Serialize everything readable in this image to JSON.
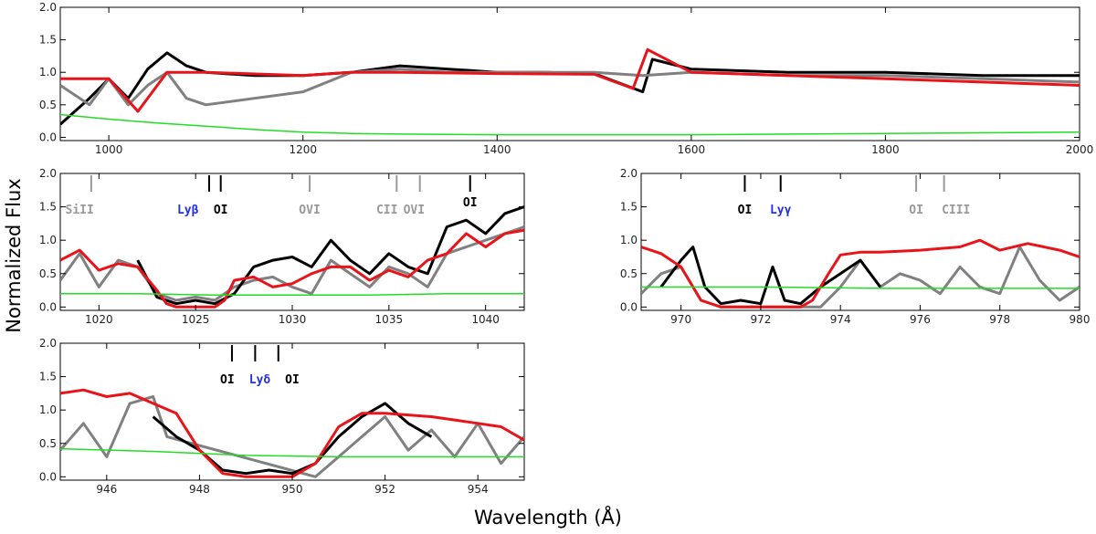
{
  "figure": {
    "xlabel": "Wavelength (Å)",
    "ylabel": "Normalized Flux"
  },
  "colors": {
    "data_black": "#000000",
    "data_gray": "#808080",
    "model_red": "#e8141a",
    "error_green": "#22dd22",
    "marker_black": "#000000",
    "marker_gray": "#999999",
    "lyman_blue": "#2233dd"
  },
  "chart_data": [
    {
      "id": "top",
      "type": "line",
      "xlim": [
        950,
        2000
      ],
      "ylim": [
        -0.05,
        2.0
      ],
      "xticks": [
        1000,
        1200,
        1400,
        1600,
        1800,
        2000
      ],
      "yticks": [
        "0.0",
        "0.5",
        "1.0",
        "1.5",
        "2.0"
      ],
      "series": [
        {
          "name": "black",
          "color": "#000000",
          "x": [
            950,
            980,
            1000,
            1020,
            1040,
            1060,
            1080,
            1100,
            1150,
            1200,
            1250,
            1300,
            1350,
            1400,
            1450,
            1500,
            1550,
            1560,
            1600,
            1700,
            1800,
            1900,
            2000
          ],
          "y": [
            0.2,
            0.6,
            0.9,
            0.6,
            1.05,
            1.3,
            1.1,
            1.0,
            0.95,
            0.95,
            1.0,
            1.1,
            1.05,
            1.0,
            1.0,
            0.98,
            0.7,
            1.2,
            1.05,
            1.0,
            1.0,
            0.95,
            0.95
          ]
        },
        {
          "name": "gray",
          "color": "#808080",
          "x": [
            950,
            980,
            1000,
            1020,
            1040,
            1060,
            1080,
            1100,
            1150,
            1200,
            1250,
            1300,
            1350,
            1400,
            1450,
            1500,
            1550,
            1600,
            1700,
            1800,
            1900,
            2000
          ],
          "y": [
            0.8,
            0.5,
            0.9,
            0.5,
            0.8,
            1.0,
            0.6,
            0.5,
            0.6,
            0.7,
            1.0,
            1.05,
            1.0,
            1.0,
            1.0,
            1.0,
            0.95,
            1.0,
            0.95,
            0.95,
            0.9,
            0.85
          ]
        },
        {
          "name": "red",
          "color": "#e8141a",
          "x": [
            950,
            1000,
            1030,
            1060,
            1100,
            1200,
            1250,
            1300,
            1400,
            1500,
            1540,
            1555,
            1600,
            1700,
            1800,
            1900,
            2000
          ],
          "y": [
            0.9,
            0.9,
            0.4,
            1.0,
            1.0,
            0.95,
            1.0,
            1.0,
            0.98,
            0.97,
            0.75,
            1.35,
            1.0,
            0.95,
            0.9,
            0.85,
            0.8
          ]
        },
        {
          "name": "green",
          "color": "#22dd22",
          "x": [
            950,
            1000,
            1050,
            1100,
            1150,
            1200,
            1250,
            1300,
            1400,
            1500,
            1600,
            1700,
            1800,
            1900,
            2000
          ],
          "y": [
            0.35,
            0.28,
            0.22,
            0.17,
            0.12,
            0.08,
            0.06,
            0.05,
            0.04,
            0.04,
            0.04,
            0.05,
            0.06,
            0.07,
            0.08
          ]
        }
      ],
      "markers": []
    },
    {
      "id": "lyb",
      "type": "line",
      "xlim": [
        1018,
        1042
      ],
      "ylim": [
        -0.05,
        2.0
      ],
      "xticks": [
        1020,
        1025,
        1030,
        1035,
        1040
      ],
      "yticks": [
        "0.0",
        "0.5",
        "1.0",
        "1.5",
        "2.0"
      ],
      "series": [
        {
          "name": "gray",
          "color": "#808080",
          "x": [
            1018,
            1019,
            1020,
            1021,
            1022,
            1023,
            1024,
            1025,
            1026,
            1027,
            1028,
            1029,
            1030,
            1031,
            1032,
            1033,
            1034,
            1035,
            1036,
            1037,
            1038,
            1039,
            1040,
            1041,
            1042
          ],
          "y": [
            0.4,
            0.8,
            0.3,
            0.7,
            0.6,
            0.2,
            0.1,
            0.15,
            0.1,
            0.3,
            0.4,
            0.45,
            0.3,
            0.2,
            0.7,
            0.5,
            0.3,
            0.6,
            0.5,
            0.3,
            0.8,
            0.9,
            1.0,
            1.1,
            1.2
          ]
        },
        {
          "name": "black",
          "color": "#000000",
          "x": [
            1022,
            1023,
            1024,
            1025,
            1026,
            1027,
            1028,
            1029,
            1030,
            1031,
            1032,
            1033,
            1034,
            1035,
            1036,
            1037,
            1038,
            1039,
            1040,
            1041,
            1042
          ],
          "y": [
            0.7,
            0.15,
            0.05,
            0.1,
            0.05,
            0.2,
            0.6,
            0.7,
            0.75,
            0.6,
            1.0,
            0.7,
            0.5,
            0.8,
            0.6,
            0.5,
            1.2,
            1.3,
            1.1,
            1.4,
            1.5
          ]
        },
        {
          "name": "red",
          "color": "#e8141a",
          "x": [
            1018,
            1019,
            1020,
            1021,
            1022,
            1023,
            1023.5,
            1024,
            1025,
            1026,
            1026.5,
            1027,
            1028,
            1029,
            1030,
            1031,
            1032,
            1033,
            1034,
            1035,
            1036,
            1037,
            1038,
            1039,
            1040,
            1041,
            1042
          ],
          "y": [
            0.7,
            0.85,
            0.55,
            0.65,
            0.6,
            0.25,
            0.05,
            0.0,
            0.0,
            0.0,
            0.1,
            0.4,
            0.45,
            0.3,
            0.35,
            0.5,
            0.6,
            0.6,
            0.4,
            0.55,
            0.45,
            0.7,
            0.8,
            1.1,
            0.9,
            1.1,
            1.15
          ]
        },
        {
          "name": "green",
          "color": "#22dd22",
          "x": [
            1018,
            1022,
            1026,
            1030,
            1034,
            1038,
            1042
          ],
          "y": [
            0.2,
            0.2,
            0.18,
            0.18,
            0.18,
            0.2,
            0.2
          ]
        }
      ],
      "markers": [
        {
          "x": 1019.6,
          "label": "SiII",
          "color": "#999999",
          "label_x": 1019.0,
          "label_row": "low"
        },
        {
          "x": 1025.7,
          "label": "Lyβ",
          "color": "#000000",
          "label_x": 1024.6,
          "label_row": "low",
          "label_color": "#2233dd"
        },
        {
          "x": 1026.3,
          "label": "OI",
          "color": "#000000",
          "label_x": 1026.3,
          "label_row": "low"
        },
        {
          "x": 1030.9,
          "label": "OVI",
          "color": "#999999",
          "label_x": 1030.9,
          "label_row": "low"
        },
        {
          "x": 1035.4,
          "label": "CII",
          "color": "#999999",
          "label_x": 1034.9,
          "label_row": "low"
        },
        {
          "x": 1036.6,
          "label": "OVI",
          "color": "#999999",
          "label_x": 1036.3,
          "label_row": "low"
        },
        {
          "x": 1039.2,
          "label": "OI",
          "color": "#000000",
          "label_x": 1039.2,
          "label_row": "high"
        }
      ]
    },
    {
      "id": "lyg",
      "type": "line",
      "xlim": [
        969,
        980
      ],
      "ylim": [
        -0.05,
        2.0
      ],
      "xticks": [
        970,
        972,
        974,
        976,
        978,
        980
      ],
      "yticks": [
        "0.0",
        "0.5",
        "1.0",
        "1.5",
        "2.0"
      ],
      "series": [
        {
          "name": "gray",
          "color": "#808080",
          "x": [
            969,
            969.5,
            970,
            970.5,
            971,
            973.5,
            974,
            974.5,
            975,
            975.5,
            976,
            976.5,
            977,
            977.5,
            978,
            978.5,
            979,
            979.5,
            980
          ],
          "y": [
            0.2,
            0.5,
            0.6,
            0.1,
            0.0,
            0.0,
            0.3,
            0.7,
            0.3,
            0.5,
            0.4,
            0.2,
            0.6,
            0.3,
            0.2,
            0.9,
            0.4,
            0.1,
            0.3
          ]
        },
        {
          "name": "black",
          "color": "#000000",
          "x": [
            969.5,
            970,
            970.3,
            970.6,
            971,
            971.5,
            972,
            972.3,
            972.6,
            973,
            973.5,
            974,
            974.5,
            975
          ],
          "y": [
            0.3,
            0.7,
            0.9,
            0.3,
            0.05,
            0.1,
            0.05,
            0.6,
            0.1,
            0.05,
            0.3,
            0.5,
            0.7,
            0.3
          ]
        },
        {
          "name": "red",
          "color": "#e8141a",
          "x": [
            969,
            969.5,
            970,
            970.5,
            971,
            972,
            973,
            973.3,
            973.7,
            974,
            974.5,
            975,
            976,
            977,
            977.5,
            978,
            978.7,
            979.5,
            980
          ],
          "y": [
            0.9,
            0.8,
            0.6,
            0.1,
            0.0,
            0.0,
            0.0,
            0.1,
            0.5,
            0.78,
            0.82,
            0.82,
            0.85,
            0.9,
            1.0,
            0.85,
            0.95,
            0.85,
            0.75
          ]
        },
        {
          "name": "green",
          "color": "#22dd22",
          "x": [
            969,
            972,
            975,
            978,
            980
          ],
          "y": [
            0.3,
            0.3,
            0.28,
            0.28,
            0.28
          ]
        }
      ],
      "markers": [
        {
          "x": 971.6,
          "label": "OI",
          "color": "#000000",
          "label_x": 971.6,
          "label_row": "low"
        },
        {
          "x": 972.5,
          "label": "Lyγ",
          "color": "#000000",
          "label_x": 972.5,
          "label_row": "low",
          "label_color": "#2233dd"
        },
        {
          "x": 975.9,
          "label": "OI",
          "color": "#999999",
          "label_x": 975.9,
          "label_row": "low"
        },
        {
          "x": 976.6,
          "label": "CIII",
          "color": "#999999",
          "label_x": 976.9,
          "label_row": "low"
        }
      ]
    },
    {
      "id": "lyd",
      "type": "line",
      "xlim": [
        945,
        955
      ],
      "ylim": [
        -0.05,
        2.0
      ],
      "xticks": [
        946,
        948,
        950,
        952,
        954
      ],
      "yticks": [
        "0.0",
        "0.5",
        "1.0",
        "1.5",
        "2.0"
      ],
      "series": [
        {
          "name": "gray",
          "color": "#808080",
          "x": [
            945,
            945.5,
            946,
            946.5,
            947,
            947.3,
            950.5,
            951,
            951.5,
            952,
            952.5,
            953,
            953.5,
            954,
            954.5,
            955
          ],
          "y": [
            0.4,
            0.8,
            0.3,
            1.1,
            1.2,
            0.6,
            0.0,
            0.3,
            0.6,
            0.9,
            0.4,
            0.7,
            0.3,
            0.8,
            0.2,
            0.6
          ]
        },
        {
          "name": "black",
          "color": "#000000",
          "x": [
            947,
            947.5,
            948,
            948.5,
            949,
            949.5,
            950,
            950.5,
            951,
            951.5,
            952,
            952.5,
            953
          ],
          "y": [
            0.9,
            0.6,
            0.4,
            0.1,
            0.05,
            0.1,
            0.05,
            0.2,
            0.6,
            0.9,
            1.1,
            0.8,
            0.6
          ]
        },
        {
          "name": "red",
          "color": "#e8141a",
          "x": [
            945,
            945.5,
            946,
            946.5,
            947,
            947.5,
            948,
            948.5,
            949,
            950,
            950.5,
            951,
            951.5,
            952,
            953,
            953.5,
            954,
            954.5,
            955
          ],
          "y": [
            1.25,
            1.3,
            1.2,
            1.25,
            1.1,
            0.95,
            0.4,
            0.05,
            0.0,
            0.0,
            0.2,
            0.75,
            0.95,
            0.95,
            0.9,
            0.85,
            0.8,
            0.75,
            0.55
          ]
        },
        {
          "name": "green",
          "color": "#22dd22",
          "x": [
            945,
            947,
            949,
            951,
            953,
            955
          ],
          "y": [
            0.42,
            0.38,
            0.32,
            0.3,
            0.3,
            0.3
          ]
        }
      ],
      "markers": [
        {
          "x": 948.7,
          "label": "OI",
          "color": "#000000",
          "label_x": 948.6,
          "label_row": "low"
        },
        {
          "x": 949.2,
          "label": "Lyδ",
          "color": "#000000",
          "label_x": 949.3,
          "label_row": "low",
          "label_color": "#2233dd"
        },
        {
          "x": 949.7,
          "label": "OI",
          "color": "#000000",
          "label_x": 950.0,
          "label_row": "low"
        }
      ]
    }
  ]
}
